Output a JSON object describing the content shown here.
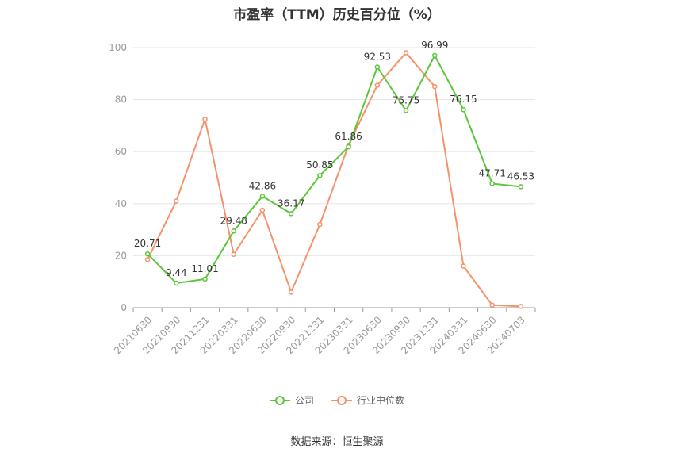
{
  "title": "市盈率（TTM）历史百分位（%）",
  "source": "数据来源：恒生聚源",
  "legend": {
    "company": "公司",
    "industry": "行业中位数"
  },
  "colors": {
    "company": "#5cc63a",
    "industry": "#f4926c",
    "grid": "#e6e6e6",
    "axis": "#999999"
  },
  "chart_data": {
    "type": "line",
    "title": "市盈率（TTM）历史百分位（%）",
    "ylim": [
      0,
      100
    ],
    "yticks": [
      0,
      20,
      40,
      60,
      80,
      100
    ],
    "categories": [
      "20210630",
      "20210930",
      "20211231",
      "20220331",
      "20220630",
      "20220930",
      "20221231",
      "20230331",
      "20230630",
      "20230930",
      "20231231",
      "20240331",
      "20240630",
      "20240703"
    ],
    "grid": true,
    "legend_position": "bottom",
    "series": [
      {
        "name": "公司",
        "color": "#5cc63a",
        "values": [
          20.71,
          9.44,
          11.01,
          29.48,
          42.86,
          36.17,
          50.85,
          61.86,
          92.53,
          75.75,
          96.99,
          76.15,
          47.71,
          46.53
        ],
        "labels": [
          "20.71",
          "9.44",
          "11.01",
          "29.48",
          "42.86",
          "36.17",
          "50.85",
          "61.86",
          "92.53",
          "75.75",
          "96.99",
          "76.15",
          "47.71",
          "46.53"
        ]
      },
      {
        "name": "行业中位数",
        "color": "#f4926c",
        "values": [
          18.5,
          41.0,
          72.5,
          20.5,
          37.5,
          6.0,
          32.0,
          62.5,
          85.5,
          98.0,
          85.0,
          16.0,
          1.0,
          0.5
        ]
      }
    ]
  }
}
